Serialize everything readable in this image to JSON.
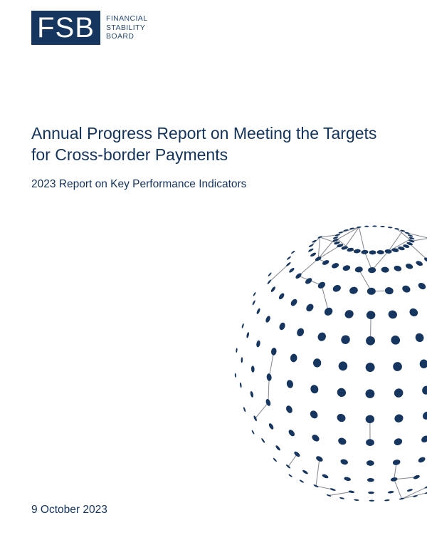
{
  "logo": {
    "abbr": "FSB",
    "line1": "FINANCIAL",
    "line2": "STABILITY",
    "line3": "BOARD",
    "brand_color": "#17365f"
  },
  "title": {
    "line1": "Annual Progress Report on Meeting the Targets",
    "line2": "for Cross-border Payments"
  },
  "subtitle": "2023 Report on Key Performance Indicators",
  "date": "9 October 2023",
  "illustration": {
    "name": "network-globe",
    "dot_color": "#17365f",
    "line_color": "#8a8f96"
  }
}
